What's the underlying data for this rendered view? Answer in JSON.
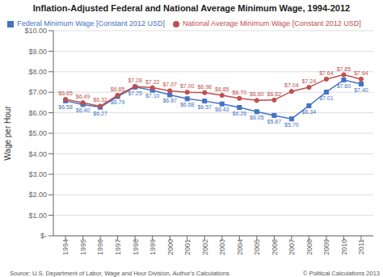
{
  "chart_data": {
    "type": "line",
    "title": "Inflation-Adjusted Federal and National Average Minimum Wage, 1994-2012",
    "ylabel": "Wage per Hour",
    "x": [
      1994,
      1995,
      1996,
      1997,
      1998,
      1999,
      2000,
      2001,
      2002,
      2003,
      2004,
      2005,
      2006,
      2007,
      2008,
      2009,
      2010,
      2011
    ],
    "xlim": [
      1993.3,
      2011.7
    ],
    "xticks": [
      1994,
      1995,
      1996,
      1997,
      1998,
      1999,
      2000,
      2001,
      2002,
      2003,
      2004,
      2005,
      2006,
      2007,
      2008,
      2009,
      2010,
      2011
    ],
    "ylim": [
      0,
      10
    ],
    "yticks": [
      {
        "value": 0,
        "label": "$-"
      },
      {
        "value": 1,
        "label": "$1.00"
      },
      {
        "value": 2,
        "label": "$2.00"
      },
      {
        "value": 3,
        "label": "$3.00"
      },
      {
        "value": 4,
        "label": "$4.00"
      },
      {
        "value": 5,
        "label": "$5.00"
      },
      {
        "value": 6,
        "label": "$6.00"
      },
      {
        "value": 7,
        "label": "$7.00"
      },
      {
        "value": 8,
        "label": "$8.00"
      },
      {
        "value": 9,
        "label": "$9.00"
      },
      {
        "value": 10,
        "label": "$10.00"
      }
    ],
    "grid": true,
    "legend": "top",
    "data_labels": true,
    "series": [
      {
        "name": "Federal Minimum Wage [Constant 2012 USD]",
        "color": "#4472C4",
        "marker": "square",
        "values": [
          6.58,
          6.4,
          6.27,
          6.79,
          7.25,
          7.1,
          6.87,
          6.68,
          6.57,
          6.43,
          6.26,
          6.05,
          5.87,
          5.7,
          6.34,
          7.01,
          7.6,
          7.4
        ],
        "value_labels": [
          "$6.58",
          "$6.40",
          "$6.27",
          "$6.79",
          "$7.25",
          "$7.10",
          "$6.87",
          "$6.68",
          "$6.57",
          "$6.43",
          "$6.26",
          "$6.05",
          "$5.87",
          "$5.70",
          "$6.34",
          "$7.01",
          "$7.60",
          "$7.40"
        ]
      },
      {
        "name": "National Average Minimum Wage [Constant 2012 USD]",
        "color": "#C0504D",
        "marker": "circle",
        "values": [
          6.65,
          6.49,
          6.32,
          6.85,
          7.28,
          7.22,
          7.07,
          7.0,
          6.98,
          6.85,
          6.7,
          6.6,
          6.62,
          7.04,
          7.24,
          7.64,
          7.85,
          7.64
        ],
        "value_labels": [
          "$6.65",
          "$6.49",
          "$6.32",
          "$6.85",
          "$7.28",
          "$7.22",
          "$7.07",
          "$7.00",
          "$6.98",
          "$6.85",
          "$6.70",
          "$6.60",
          "$6.62",
          "$7.04",
          "$7.24",
          "$7.64",
          "$7.85",
          "$7.64"
        ]
      }
    ],
    "annotations": [
      "Source: U.S. Department of Labor, Wage and Hour Division, Author's Calculations",
      "© Political Calculations 2013"
    ]
  }
}
